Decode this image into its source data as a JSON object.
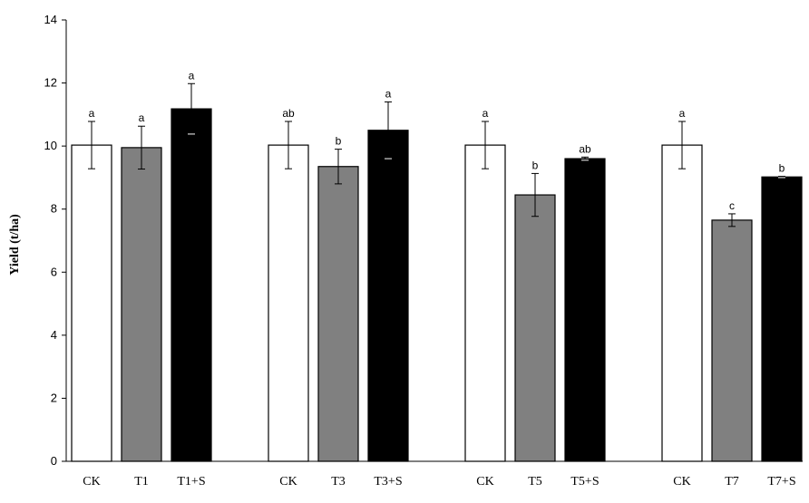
{
  "chart_data": {
    "type": "bar",
    "title": "",
    "xlabel": "",
    "ylabel": "Yield (t/ha)",
    "ylim": [
      0,
      14
    ],
    "yticks": [
      0,
      2,
      4,
      6,
      8,
      10,
      12,
      14
    ],
    "grid": false,
    "legend": "none",
    "groups": [
      {
        "bars": [
          {
            "label": "CK",
            "value": 10.03,
            "error": 0.75,
            "sig": "a",
            "fill": "white"
          },
          {
            "label": "T1",
            "value": 9.95,
            "error": 0.68,
            "sig": "a",
            "fill": "gray"
          },
          {
            "label": "T1+S",
            "value": 11.18,
            "error": 0.8,
            "sig": "a",
            "fill": "black"
          }
        ]
      },
      {
        "bars": [
          {
            "label": "CK",
            "value": 10.03,
            "error": 0.75,
            "sig": "ab",
            "fill": "white"
          },
          {
            "label": "T3",
            "value": 9.35,
            "error": 0.55,
            "sig": "b",
            "fill": "gray"
          },
          {
            "label": "T3+S",
            "value": 10.5,
            "error": 0.9,
            "sig": "a",
            "fill": "black"
          }
        ]
      },
      {
        "bars": [
          {
            "label": "CK",
            "value": 10.03,
            "error": 0.75,
            "sig": "a",
            "fill": "white"
          },
          {
            "label": "T5",
            "value": 8.45,
            "error": 0.68,
            "sig": "b",
            "fill": "gray"
          },
          {
            "label": "T5+S",
            "value": 9.6,
            "error": 0.05,
            "sig": "ab",
            "fill": "black"
          }
        ]
      },
      {
        "bars": [
          {
            "label": "CK",
            "value": 10.03,
            "error": 0.75,
            "sig": "a",
            "fill": "white"
          },
          {
            "label": "T7",
            "value": 7.65,
            "error": 0.2,
            "sig": "c",
            "fill": "gray"
          },
          {
            "label": "T7+S",
            "value": 9.02,
            "error": 0.02,
            "sig": "b",
            "fill": "black"
          }
        ]
      }
    ],
    "colors": {
      "white": "#ffffff",
      "gray": "#808080",
      "black": "#000000"
    }
  }
}
